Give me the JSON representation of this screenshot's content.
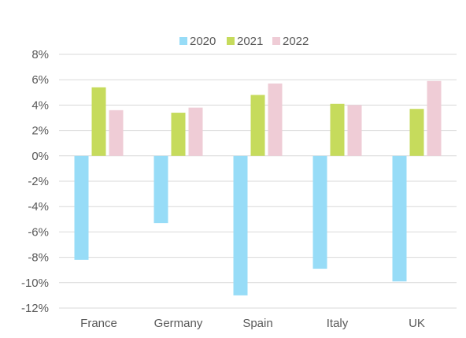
{
  "chart_data": {
    "type": "bar",
    "categories": [
      "France",
      "Germany",
      "Spain",
      "Italy",
      "UK"
    ],
    "series": [
      {
        "name": "2020",
        "color": "#97dcf7",
        "values": [
          -8.2,
          -5.3,
          -11.0,
          -8.9,
          -9.9
        ]
      },
      {
        "name": "2021",
        "color": "#c6db5c",
        "values": [
          5.4,
          3.4,
          4.8,
          4.1,
          3.7
        ]
      },
      {
        "name": "2022",
        "color": "#efccd6",
        "values": [
          3.6,
          3.8,
          5.7,
          4.0,
          5.9
        ]
      }
    ],
    "title": "",
    "xlabel": "",
    "ylabel": "",
    "ylim": [
      -12,
      8
    ],
    "y_ticks": [
      "8%",
      "6%",
      "4%",
      "2%",
      "0%",
      "-2%",
      "-4%",
      "-6%",
      "-8%",
      "-10%",
      "-12%"
    ],
    "grid": "horizontal",
    "legend": "top-center"
  }
}
